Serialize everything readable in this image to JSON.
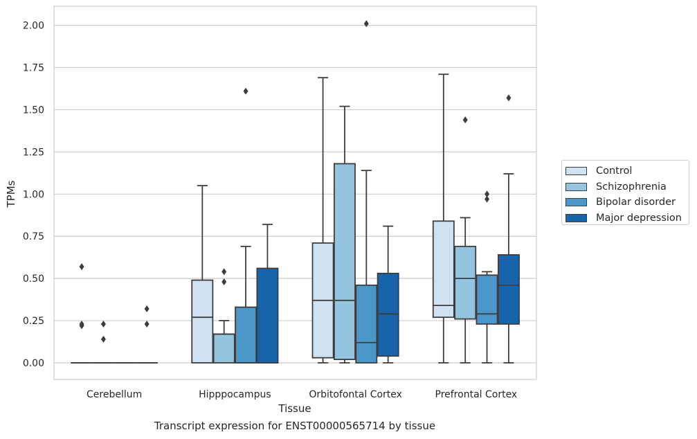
{
  "colors": {
    "Control": "#d0e1f2",
    "Schizophrenia": "#94c4df",
    "Bipolar disorder": "#4a98c9",
    "Major depression": "#1764ab"
  },
  "caption": "Transcript expression for ENST00000565714 by tissue",
  "legend_title": "",
  "chart_data": {
    "type": "box",
    "title": "",
    "xlabel": "Tissue",
    "ylabel": "TPMs",
    "categories": [
      "Cerebellum",
      "Hipppocampus",
      "Orbitofontal Cortex",
      "Prefrontal Cortex"
    ],
    "ylim": [
      -0.1,
      2.12
    ],
    "yticks": [
      "0.00",
      "0.25",
      "0.50",
      "0.75",
      "1.00",
      "1.25",
      "1.50",
      "1.75",
      "2.00"
    ],
    "grid": "horizontal",
    "legend_position": "right",
    "series": [
      {
        "name": "Control",
        "boxes": [
          {
            "whislo": 0,
            "q1": 0,
            "med": 0,
            "q3": 0,
            "whishi": 0,
            "fliers": [
              0.22,
              0.23,
              0.57
            ]
          },
          {
            "whislo": 0,
            "q1": 0,
            "med": 0.27,
            "q3": 0.49,
            "whishi": 1.05,
            "fliers": []
          },
          {
            "whislo": 0,
            "q1": 0.03,
            "med": 0.37,
            "q3": 0.71,
            "whishi": 1.69,
            "fliers": []
          },
          {
            "whislo": 0,
            "q1": 0.27,
            "med": 0.34,
            "q3": 0.84,
            "whishi": 1.71,
            "fliers": []
          }
        ]
      },
      {
        "name": "Schizophrenia",
        "boxes": [
          {
            "whislo": 0,
            "q1": 0,
            "med": 0,
            "q3": 0,
            "whishi": 0,
            "fliers": [
              0.14,
              0.23
            ]
          },
          {
            "whislo": 0,
            "q1": 0,
            "med": 0.17,
            "q3": 0.17,
            "whishi": 0.25,
            "fliers": [
              0.48,
              0.54
            ]
          },
          {
            "whislo": 0,
            "q1": 0.02,
            "med": 0.37,
            "q3": 1.18,
            "whishi": 1.52,
            "fliers": []
          },
          {
            "whislo": 0,
            "q1": 0.26,
            "med": 0.5,
            "q3": 0.69,
            "whishi": 0.86,
            "fliers": [
              1.44
            ]
          }
        ]
      },
      {
        "name": "Bipolar disorder",
        "boxes": [
          {
            "whislo": 0,
            "q1": 0,
            "med": 0,
            "q3": 0,
            "whishi": 0,
            "fliers": []
          },
          {
            "whislo": 0,
            "q1": 0,
            "med": 0,
            "q3": 0.33,
            "whishi": 0.69,
            "fliers": [
              1.61
            ]
          },
          {
            "whislo": 0,
            "q1": 0,
            "med": 0.12,
            "q3": 0.46,
            "whishi": 1.14,
            "fliers": [
              2.01
            ]
          },
          {
            "whislo": 0,
            "q1": 0.23,
            "med": 0.29,
            "q3": 0.52,
            "whishi": 0.54,
            "fliers": [
              0.97,
              1.0
            ]
          }
        ]
      },
      {
        "name": "Major depression",
        "boxes": [
          {
            "whislo": 0,
            "q1": 0,
            "med": 0,
            "q3": 0,
            "whishi": 0,
            "fliers": [
              0.23,
              0.32
            ]
          },
          {
            "whislo": 0,
            "q1": 0,
            "med": 0,
            "q3": 0.56,
            "whishi": 0.82,
            "fliers": []
          },
          {
            "whislo": 0,
            "q1": 0.04,
            "med": 0.29,
            "q3": 0.53,
            "whishi": 0.81,
            "fliers": []
          },
          {
            "whislo": 0,
            "q1": 0.23,
            "med": 0.46,
            "q3": 0.64,
            "whishi": 1.12,
            "fliers": [
              1.57
            ]
          }
        ]
      }
    ]
  }
}
